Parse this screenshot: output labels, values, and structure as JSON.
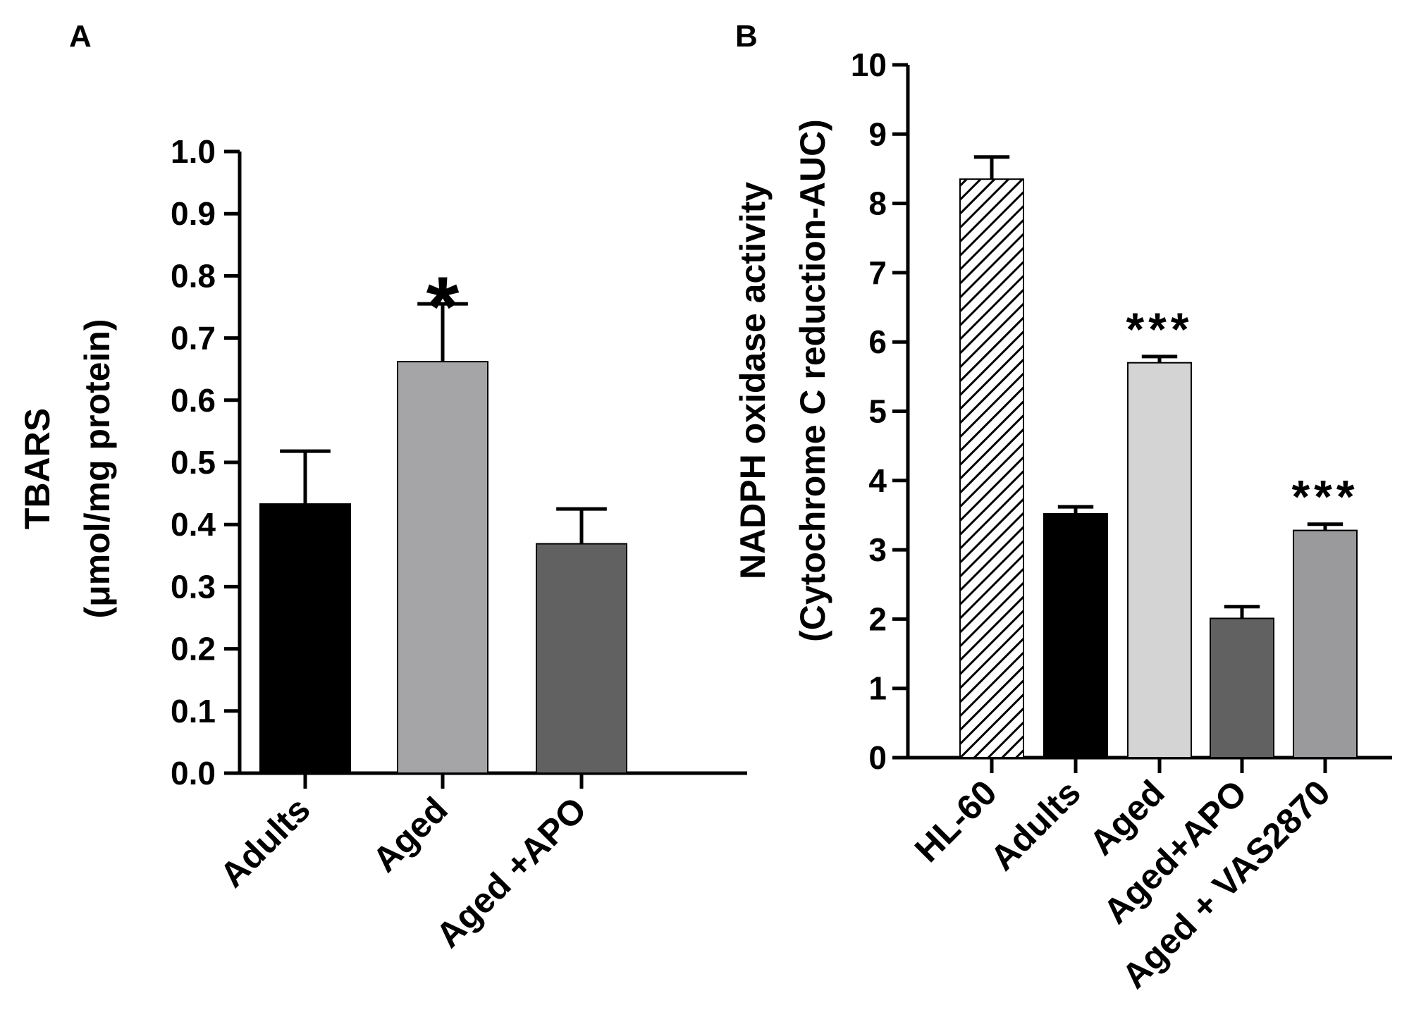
{
  "colors": {
    "black": "#000000",
    "light_gray": "#a5a5a8",
    "dark_gray": "#616161",
    "very_light_gray": "#d4d4d4",
    "mid_gray": "#9a9a9c",
    "white": "#ffffff"
  },
  "chart_data": [
    {
      "panel": "A",
      "type": "bar",
      "ylabel_line1": "TBARS",
      "ylabel_line2": "(μmol/mg protein)",
      "xlabel": "",
      "ylim": [
        0,
        1.0
      ],
      "ytick_step": 0.1,
      "yticks": [
        "0.0",
        "0.1",
        "0.2",
        "0.3",
        "0.4",
        "0.5",
        "0.6",
        "0.7",
        "0.8",
        "0.9",
        "1.0"
      ],
      "categories": [
        "Adults",
        "Aged",
        "Aged +APO"
      ],
      "values": [
        0.433,
        0.662,
        0.369
      ],
      "errors": [
        0.085,
        0.093,
        0.056
      ],
      "bar_colors": [
        "black",
        "light_gray",
        "dark_gray"
      ],
      "bar_patterns": [
        "solid",
        "solid",
        "solid"
      ],
      "annotations": [
        "",
        "*",
        ""
      ]
    },
    {
      "panel": "B",
      "type": "bar",
      "ylabel_line1": "NADPH oxidase activity",
      "ylabel_line2": "(Cytochrome C reduction-AUC)",
      "xlabel": "",
      "ylim": [
        0,
        10
      ],
      "ytick_step": 1,
      "yticks": [
        "0",
        "1",
        "2",
        "3",
        "4",
        "5",
        "6",
        "7",
        "8",
        "9",
        "10"
      ],
      "categories": [
        "HL-60",
        "Adults",
        "Aged",
        "Aged+APO",
        "Aged + VAS2870"
      ],
      "values": [
        8.35,
        3.52,
        5.7,
        2.01,
        3.28
      ],
      "errors": [
        0.32,
        0.1,
        0.09,
        0.17,
        0.09
      ],
      "bar_colors": [
        "white",
        "black",
        "very_light_gray",
        "dark_gray",
        "mid_gray"
      ],
      "bar_patterns": [
        "hatch",
        "solid",
        "solid",
        "solid",
        "solid"
      ],
      "annotations": [
        "",
        "",
        "***",
        "",
        "***"
      ]
    }
  ]
}
